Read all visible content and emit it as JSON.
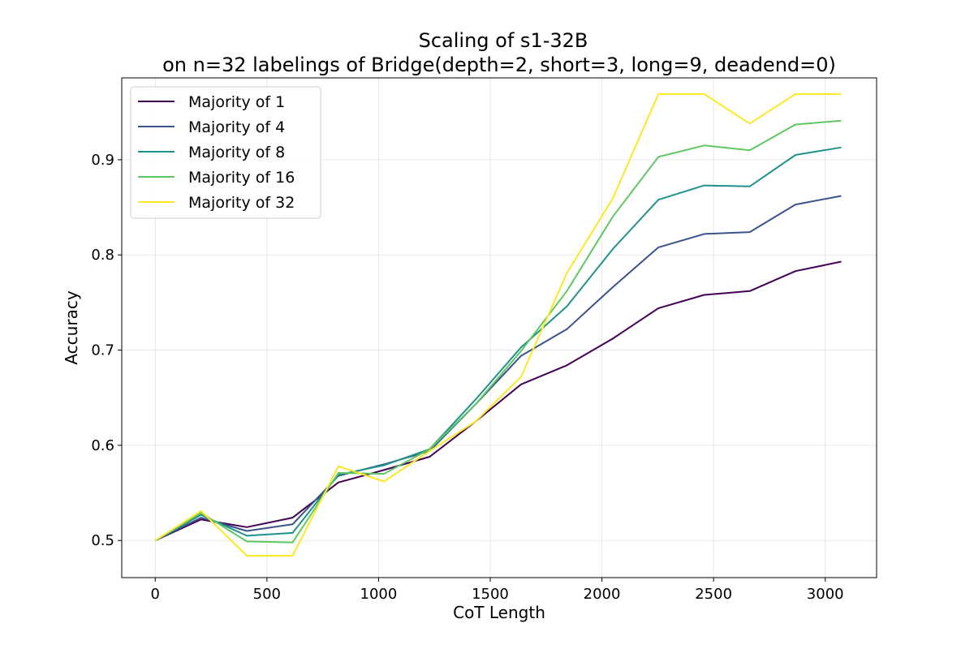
{
  "chart_data": {
    "type": "line",
    "title": "Scaling of s1-32B",
    "subtitle": "on n=32 labelings of Bridge(depth=2, short=3, long=9, deadend=0)",
    "xlabel": "CoT Length",
    "ylabel": "Accuracy",
    "xlim": [
      -150,
      3230
    ],
    "ylim": [
      0.461,
      0.986
    ],
    "xticks": [
      0,
      500,
      1000,
      1500,
      2000,
      2500,
      3000
    ],
    "yticks": [
      0.5,
      0.6,
      0.7,
      0.8,
      0.9
    ],
    "xtick_labels": [
      "0",
      "500",
      "1000",
      "1500",
      "2000",
      "2500",
      "3000"
    ],
    "ytick_labels": [
      "0.5",
      "0.6",
      "0.7",
      "0.8",
      "0.9"
    ],
    "grid": true,
    "legend_position": "upper-left",
    "x": [
      0,
      205,
      410,
      615,
      820,
      1024,
      1229,
      1434,
      1638,
      1843,
      2048,
      2253,
      2458,
      2662,
      2867,
      3072
    ],
    "series": [
      {
        "name": "Majority of 1",
        "color": "#440154",
        "values": [
          0.5,
          0.522,
          0.514,
          0.524,
          0.561,
          0.574,
          0.588,
          0.625,
          0.664,
          0.684,
          0.712,
          0.744,
          0.758,
          0.762,
          0.783,
          0.793
        ]
      },
      {
        "name": "Majority of 4",
        "color": "#3b528b",
        "values": [
          0.5,
          0.524,
          0.51,
          0.517,
          0.568,
          0.58,
          0.594,
          0.643,
          0.694,
          0.722,
          0.766,
          0.808,
          0.822,
          0.824,
          0.853,
          0.862
        ]
      },
      {
        "name": "Majority of 8",
        "color": "#21918c",
        "values": [
          0.5,
          0.527,
          0.505,
          0.508,
          0.569,
          0.579,
          0.596,
          0.648,
          0.703,
          0.746,
          0.806,
          0.858,
          0.873,
          0.872,
          0.905,
          0.913
        ]
      },
      {
        "name": "Majority of 16",
        "color": "#5ec962",
        "values": [
          0.5,
          0.529,
          0.499,
          0.498,
          0.571,
          0.57,
          0.596,
          0.643,
          0.699,
          0.762,
          0.84,
          0.903,
          0.915,
          0.91,
          0.937,
          0.941
        ]
      },
      {
        "name": "Majority of 32",
        "color": "#fde725",
        "values": [
          0.5,
          0.531,
          0.484,
          0.484,
          0.578,
          0.562,
          0.594,
          0.625,
          0.672,
          0.781,
          0.859,
          0.969,
          0.969,
          0.938,
          0.969,
          0.969
        ]
      }
    ]
  }
}
